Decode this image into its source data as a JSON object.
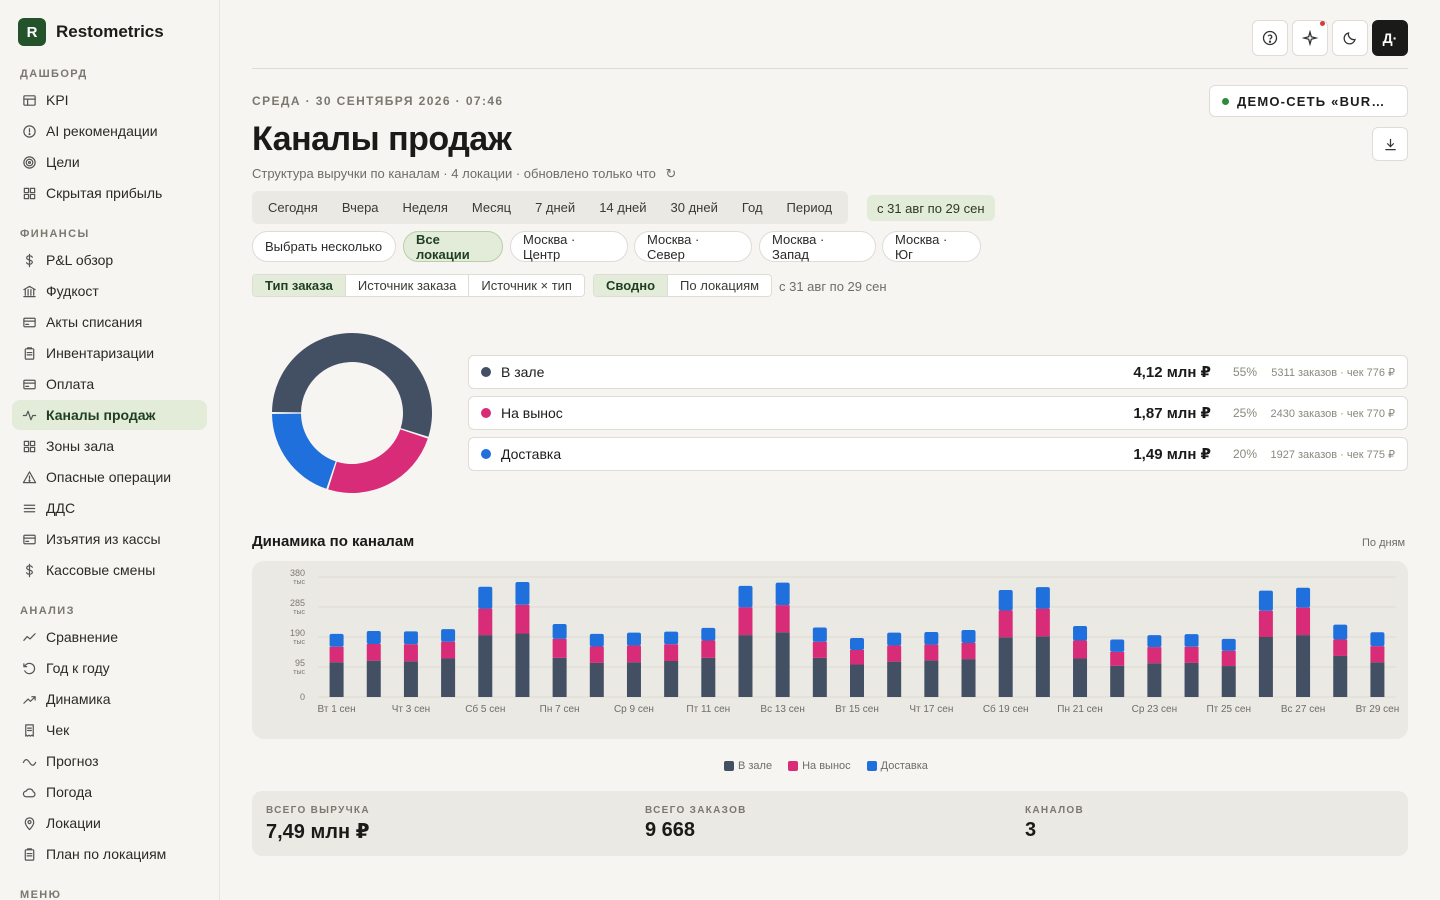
{
  "brand": {
    "logo_letter": "R",
    "name": "Restometrics"
  },
  "sidebar": {
    "sections": [
      {
        "title": "ДАШБОРД",
        "items": [
          {
            "label": "KPI",
            "icon": "table-icon"
          },
          {
            "label": "AI рекомендации",
            "icon": "alert-circle-icon"
          },
          {
            "label": "Цели",
            "icon": "target-icon"
          },
          {
            "label": "Скрытая прибыль",
            "icon": "grid-icon"
          }
        ]
      },
      {
        "title": "ФИНАНСЫ",
        "items": [
          {
            "label": "P&L обзор",
            "icon": "dollar-icon"
          },
          {
            "label": "Фудкост",
            "icon": "bank-icon"
          },
          {
            "label": "Акты списания",
            "icon": "card-icon"
          },
          {
            "label": "Инвентаризации",
            "icon": "clipboard-icon"
          },
          {
            "label": "Оплата",
            "icon": "card-icon"
          },
          {
            "label": "Каналы продаж",
            "icon": "activity-icon",
            "active": true
          },
          {
            "label": "Зоны зала",
            "icon": "grid-icon"
          },
          {
            "label": "Опасные операции",
            "icon": "warning-icon"
          },
          {
            "label": "ДДС",
            "icon": "menu-icon"
          },
          {
            "label": "Изъятия из кассы",
            "icon": "card-icon"
          },
          {
            "label": "Кассовые смены",
            "icon": "dollar-icon"
          }
        ]
      },
      {
        "title": "АНАЛИЗ",
        "items": [
          {
            "label": "Сравнение",
            "icon": "compare-icon"
          },
          {
            "label": "Год к году",
            "icon": "history-icon"
          },
          {
            "label": "Динамика",
            "icon": "trending-icon"
          },
          {
            "label": "Чек",
            "icon": "receipt-icon"
          },
          {
            "label": "Прогноз",
            "icon": "wave-icon"
          },
          {
            "label": "Погода",
            "icon": "cloud-icon"
          },
          {
            "label": "Локации",
            "icon": "pin-icon"
          },
          {
            "label": "План по локациям",
            "icon": "clipboard-icon"
          }
        ]
      },
      {
        "title": "МЕНЮ",
        "items": []
      }
    ]
  },
  "topbar": {
    "avatar": "Д·"
  },
  "header": {
    "date": "СРЕДА · 30 СЕНТЯБРЯ 2026 · 07:46",
    "title": "Каналы продаж",
    "subtitle": "Структура выручки по каналам · 4 локации · обновлено только что",
    "refresh_glyph": "↻",
    "org": "ДЕМО-СЕТЬ «BURGER STATION»"
  },
  "periods": [
    "Сегодня",
    "Вчера",
    "Неделя",
    "Месяц",
    "7 дней",
    "14 дней",
    "30 дней",
    "Год",
    "Период"
  ],
  "period_range": "с 31 авг по 29 сен",
  "locations": [
    "Выбрать несколько",
    "Все локации",
    "Москва · Центр",
    "Москва · Север",
    "Москва · Запад",
    "Москва · Юг"
  ],
  "active_location": 1,
  "grouping": [
    "Тип заказа",
    "Источник заказа",
    "Источник × тип"
  ],
  "view_mode": [
    "Сводно",
    "По локациям"
  ],
  "range_caption": "с 31 авг по 29 сен",
  "colors": {
    "dine_in": "#434f63",
    "takeaway": "#d92c78",
    "delivery": "#1f6fdc",
    "accent": "#24522a",
    "accent_bg": "#e2ecd9"
  },
  "channels": [
    {
      "name": "В зале",
      "value": "4,12 млн ₽",
      "share": "55%",
      "meta": "5311 заказов · чек 776 ₽",
      "color": "#434f63",
      "fraction": 0.55
    },
    {
      "name": "На вынос",
      "value": "1,87 млн ₽",
      "share": "25%",
      "meta": "2430 заказов · чек 770 ₽",
      "color": "#d92c78",
      "fraction": 0.25
    },
    {
      "name": "Доставка",
      "value": "1,49 млн ₽",
      "share": "20%",
      "meta": "1927 заказов · чек 775 ₽",
      "color": "#1f6fdc",
      "fraction": 0.2
    }
  ],
  "dynamics": {
    "title": "Динамика по каналам",
    "mode": "По дням"
  },
  "chart_data": {
    "type": "bar",
    "stacked": true,
    "categories": [
      "Вт 1 сен",
      "Ср 2 сен",
      "Чт 3 сен",
      "Пт 4 сен",
      "Сб 5 сен",
      "Вс 6 сен",
      "Пн 7 сен",
      "Вт 8 сен",
      "Ср 9 сен",
      "Чт 10 сен",
      "Пт 11 сен",
      "Сб 12 сен",
      "Вс 13 сен",
      "Пн 14 сен",
      "Вт 15 сен",
      "Ср 16 сен",
      "Чт 17 сен",
      "Пт 18 сен",
      "Сб 19 сен",
      "Вс 20 сен",
      "Пн 21 сен",
      "Вт 22 сен",
      "Ср 23 сен",
      "Чт 24 сен",
      "Пт 25 сен",
      "Сб 26 сен",
      "Вс 27 сен",
      "Пн 28 сен",
      "Вт 29 сен"
    ],
    "tick_labels": [
      "Вт 1 сен",
      "Чт 3 сен",
      "Сб 5 сен",
      "Пн 7 сен",
      "Ср 9 сен",
      "Пт 11 сен",
      "Вс 13 сен",
      "Вт 15 сен",
      "Чт 17 сен",
      "Сб 19 сен",
      "Пн 21 сен",
      "Ср 23 сен",
      "Пт 25 сен",
      "Вс 27 сен",
      "Вт 29 сен"
    ],
    "series": [
      {
        "name": "В зале",
        "color": "#434f63",
        "values": [
          110,
          115,
          113,
          122,
          196,
          201,
          124,
          108,
          110,
          114,
          124,
          196,
          205,
          124,
          103,
          112,
          116,
          120,
          189,
          192,
          122,
          99,
          107,
          108,
          98,
          190,
          196,
          130,
          110
        ]
      },
      {
        "name": "На вынос",
        "color": "#d92c78",
        "values": [
          49,
          53,
          54,
          53,
          84,
          91,
          60,
          52,
          53,
          53,
          55,
          88,
          86,
          51,
          46,
          51,
          50,
          51,
          85,
          88,
          57,
          44,
          51,
          51,
          48,
          83,
          87,
          52,
          51
        ]
      },
      {
        "name": "Доставка",
        "color": "#1f6fdc",
        "values": [
          41,
          41,
          41,
          40,
          69,
          72,
          47,
          40,
          41,
          40,
          40,
          68,
          71,
          45,
          38,
          41,
          40,
          41,
          65,
          68,
          46,
          39,
          38,
          40,
          38,
          64,
          63,
          47,
          44
        ]
      }
    ],
    "yticks": [
      {
        "v": 0,
        "l": "0",
        "u": ""
      },
      {
        "v": 95,
        "l": "95",
        "u": "тыс"
      },
      {
        "v": 190,
        "l": "190",
        "u": "тыс"
      },
      {
        "v": 285,
        "l": "285",
        "u": "тыс"
      },
      {
        "v": 380,
        "l": "380",
        "u": "тыс"
      }
    ],
    "ylim": [
      0,
      380
    ],
    "legend": "bottom-center",
    "grid": true
  },
  "totals": [
    {
      "label": "ВСЕГО ВЫРУЧКА",
      "value": "7,49 млн ₽"
    },
    {
      "label": "ВСЕГО ЗАКАЗОВ",
      "value": "9 668"
    },
    {
      "label": "КАНАЛОВ",
      "value": "3"
    }
  ]
}
